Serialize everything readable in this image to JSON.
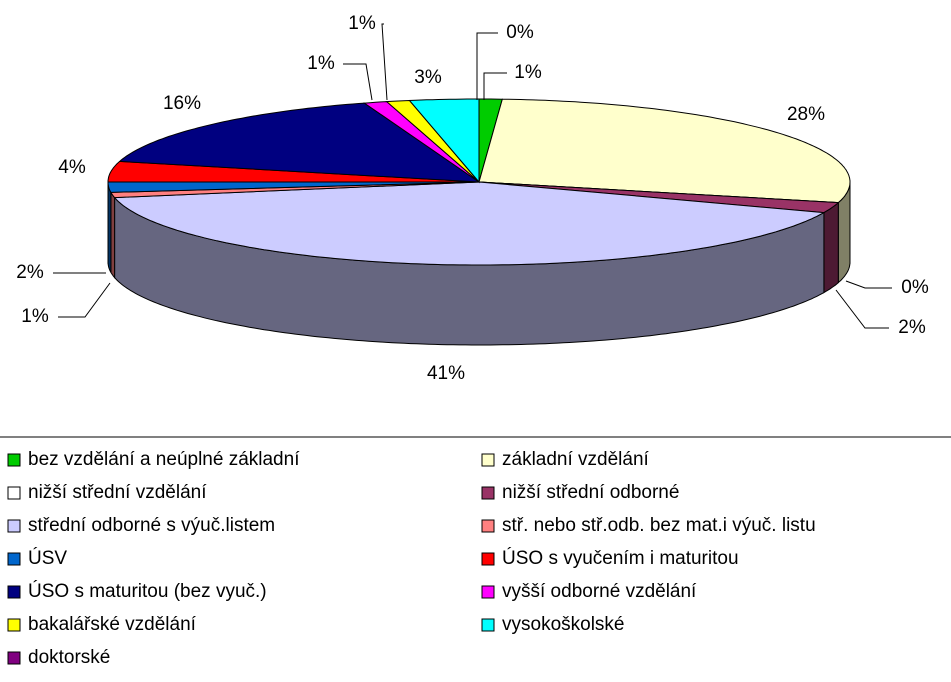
{
  "chart_data": {
    "type": "pie",
    "three_d": true,
    "legend_position": "bottom",
    "categories": [
      "bez vzdělání a neúplné základní",
      "základní vzdělání",
      "nižší střední vzdělání",
      "nižší střední odborné",
      "střední odborné s výuč.listem",
      "stř. nebo stř.odb. bez mat.i výuč. listu",
      "ÚSV",
      "ÚSO s vyučením i maturitou",
      "ÚSO s maturitou (bez vyuč.)",
      "vyšší odborné vzdělání",
      "bakalářské vzdělání",
      "vysokoškolské",
      "doktorské"
    ],
    "values": [
      1,
      28,
      0,
      2,
      41,
      1,
      2,
      4,
      16,
      1,
      1,
      3,
      0
    ],
    "value_labels": [
      "1%",
      "28%",
      "0%",
      "2%",
      "41%",
      "1%",
      "2%",
      "4%",
      "16%",
      "1%",
      "1%",
      "3%",
      "0%"
    ],
    "colors": [
      "#00cc00",
      "#ffffcc",
      "#ffffff",
      "#993366",
      "#ccccff",
      "#ff8080",
      "#0066cc",
      "#ff0000",
      "#000080",
      "#ff00ff",
      "#ffff00",
      "#00ffff",
      "#800080"
    ]
  }
}
